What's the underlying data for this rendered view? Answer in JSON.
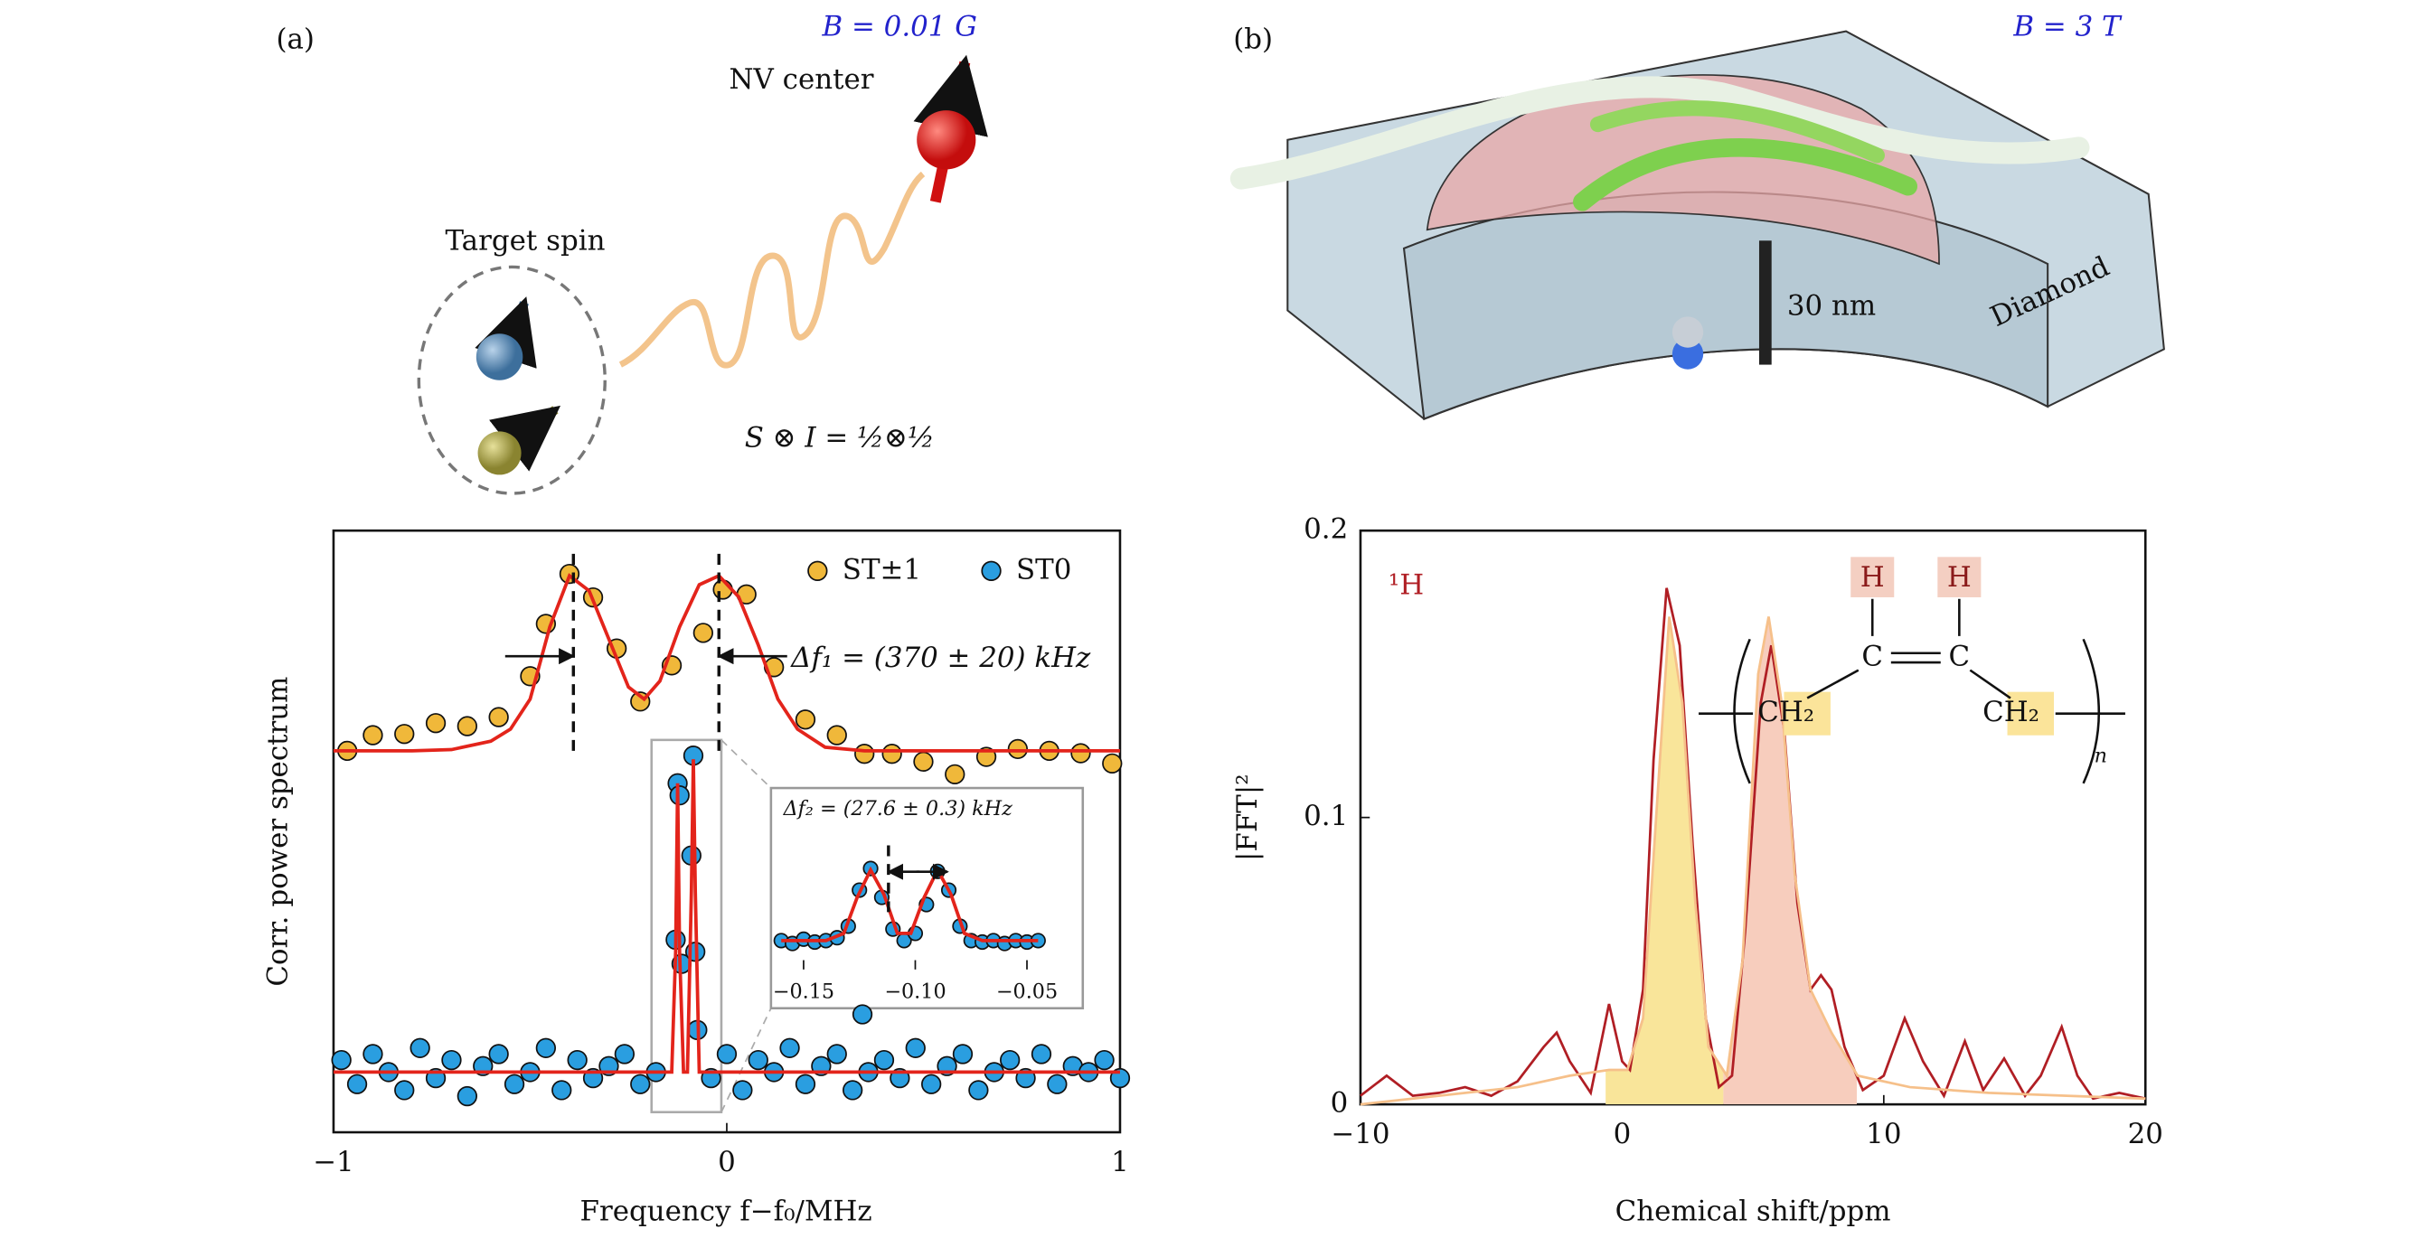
{
  "panel_labels": [
    "(a)",
    "(b)"
  ],
  "illustration_a": {
    "field": "B = 0.01 G",
    "nv": "NV center",
    "target": "Target spin",
    "formula": "S ⊗ I = ½⊗½"
  },
  "illustration_b": {
    "field": "B = 3 T",
    "scale": "30 nm",
    "material": "Diamond"
  },
  "chart_data": [
    {
      "type": "scatter",
      "ylabel": "Corr. power spectrum",
      "xlabel": "Frequency f−f₀/MHz",
      "xlim": [
        -1,
        1
      ],
      "ylim": [
        0,
        1
      ],
      "xticks": [
        {
          "value": -1,
          "label": "−1"
        },
        0,
        1
      ],
      "annotation": "Δf₁ = (370 ± 20) kHz",
      "dashed_x": [
        -0.39,
        -0.02
      ],
      "series": [
        {
          "name": "ST±1",
          "style": "points",
          "color": "#f0b83a",
          "x": [
            -0.965,
            -0.9,
            -0.82,
            -0.74,
            -0.66,
            -0.58,
            -0.5,
            -0.46,
            -0.4,
            -0.34,
            -0.28,
            -0.22,
            -0.14,
            -0.06,
            -0.01,
            0.05,
            0.12,
            0.2,
            0.28,
            0.35,
            0.42,
            0.5,
            0.58,
            0.66,
            0.74,
            0.82,
            0.9,
            0.98
          ],
          "values": [
            0.634,
            0.66,
            0.662,
            0.68,
            0.675,
            0.69,
            0.758,
            0.845,
            0.928,
            0.889,
            0.804,
            0.716,
            0.776,
            0.83,
            0.902,
            0.894,
            0.773,
            0.686,
            0.66,
            0.629,
            0.629,
            0.616,
            0.595,
            0.624,
            0.637,
            0.634,
            0.63,
            0.613
          ]
        },
        {
          "name": "ST0",
          "style": "points",
          "color": "#2a9ee0",
          "x": [
            -0.98,
            -0.94,
            -0.9,
            -0.86,
            -0.82,
            -0.78,
            -0.74,
            -0.7,
            -0.66,
            -0.62,
            -0.58,
            -0.54,
            -0.5,
            -0.46,
            -0.42,
            -0.38,
            -0.34,
            -0.3,
            -0.26,
            -0.22,
            -0.18,
            -0.13,
            -0.125,
            -0.12,
            -0.115,
            -0.09,
            -0.085,
            -0.08,
            -0.075,
            -0.04,
            0,
            0.04,
            0.08,
            0.12,
            0.16,
            0.2,
            0.24,
            0.28,
            0.32,
            0.345,
            0.36,
            0.4,
            0.44,
            0.48,
            0.52,
            0.56,
            0.6,
            0.64,
            0.68,
            0.72,
            0.76,
            0.8,
            0.84,
            0.88,
            0.92,
            0.96,
            1
          ],
          "values": [
            0.12,
            0.08,
            0.13,
            0.1,
            0.07,
            0.14,
            0.09,
            0.12,
            0.06,
            0.11,
            0.13,
            0.08,
            0.1,
            0.14,
            0.07,
            0.12,
            0.09,
            0.11,
            0.13,
            0.08,
            0.1,
            0.32,
            0.58,
            0.56,
            0.28,
            0.46,
            0.626,
            0.3,
            0.17,
            0.09,
            0.13,
            0.07,
            0.12,
            0.1,
            0.14,
            0.08,
            0.11,
            0.13,
            0.07,
            0.196,
            0.1,
            0.12,
            0.09,
            0.14,
            0.08,
            0.11,
            0.13,
            0.07,
            0.1,
            0.12,
            0.09,
            0.13,
            0.08,
            0.11,
            0.1,
            0.12,
            0.09
          ]
        },
        {
          "style": "line",
          "color": "#e3241b",
          "x": [
            -1,
            -0.8,
            -0.7,
            -0.6,
            -0.55,
            -0.5,
            -0.45,
            -0.4,
            -0.35,
            -0.3,
            -0.25,
            -0.21,
            -0.17,
            -0.12,
            -0.07,
            -0.02,
            0.03,
            0.08,
            0.13,
            0.18,
            0.25,
            0.35,
            0.5,
            1
          ],
          "values": [
            0.634,
            0.634,
            0.636,
            0.65,
            0.67,
            0.72,
            0.84,
            0.925,
            0.9,
            0.82,
            0.74,
            0.72,
            0.75,
            0.84,
            0.91,
            0.925,
            0.89,
            0.81,
            0.72,
            0.67,
            0.64,
            0.634,
            0.634,
            0.634
          ]
        },
        {
          "style": "line",
          "color": "#e3241b",
          "x": [
            -1,
            -0.14,
            -0.13,
            -0.125,
            -0.12,
            -0.11,
            -0.1,
            -0.09,
            -0.085,
            -0.08,
            -0.07,
            1
          ],
          "values": [
            0.1,
            0.1,
            0.3,
            0.58,
            0.3,
            0.1,
            0.1,
            0.4,
            0.62,
            0.4,
            0.1,
            0.1
          ]
        }
      ],
      "inset": {
        "xlim": [
          -0.1646,
          -0.025
        ],
        "ylim": [
          0,
          1
        ],
        "xticks": [
          {
            "value": -0.15,
            "label": "−0.15"
          },
          {
            "value": -0.1,
            "label": "−0.10"
          },
          {
            "value": -0.05,
            "label": "−0.05"
          }
        ],
        "annotation": "Δf₂ = (27.6 ± 0.3) kHz",
        "dashed_x": [
          -0.112
        ],
        "series": [
          {
            "style": "points",
            "color": "#2a9ee0",
            "x": [
              -0.16,
              -0.155,
              -0.15,
              -0.145,
              -0.14,
              -0.135,
              -0.13,
              -0.125,
              -0.12,
              -0.115,
              -0.11,
              -0.105,
              -0.1,
              -0.095,
              -0.09,
              -0.085,
              -0.08,
              -0.075,
              -0.07,
              -0.065,
              -0.06,
              -0.055,
              -0.05,
              -0.045
            ],
            "values": [
              0.2,
              0.18,
              0.21,
              0.19,
              0.2,
              0.22,
              0.3,
              0.55,
              0.7,
              0.5,
              0.28,
              0.2,
              0.25,
              0.45,
              0.68,
              0.55,
              0.3,
              0.2,
              0.19,
              0.2,
              0.18,
              0.2,
              0.19,
              0.2
            ]
          },
          {
            "style": "line",
            "color": "#e3241b",
            "x": [
              -0.16,
              -0.14,
              -0.132,
              -0.126,
              -0.12,
              -0.114,
              -0.108,
              -0.102,
              -0.096,
              -0.09,
              -0.084,
              -0.078,
              -0.07,
              -0.045
            ],
            "values": [
              0.2,
              0.2,
              0.25,
              0.5,
              0.69,
              0.52,
              0.25,
              0.25,
              0.5,
              0.69,
              0.52,
              0.25,
              0.2,
              0.2
            ]
          }
        ]
      }
    },
    {
      "type": "line",
      "ylabel": "|FFT|²",
      "xlabel": "Chemical shift/ppm",
      "nucleus": "¹H",
      "xlim": [
        -10,
        20
      ],
      "ylim": [
        0,
        0.2
      ],
      "xticks": [
        {
          "value": -10,
          "label": "−10"
        },
        0,
        10,
        20
      ],
      "yticks": [
        0,
        0.1,
        0.2
      ],
      "molecule": {
        "h": [
          "H",
          "H"
        ],
        "c": [
          "C",
          "C"
        ],
        "ch2": [
          "CH₂",
          "CH₂"
        ],
        "repeat": "n"
      },
      "fills": [
        {
          "x": [
            -0.63,
            3.87
          ],
          "color": "#f9e59a"
        },
        {
          "x": [
            3.87,
            8.97
          ],
          "color": "#f7cdbd"
        }
      ],
      "fill_series": 1,
      "series": [
        {
          "color": "#b01e24",
          "x": [
            -10,
            -9,
            -8,
            -7,
            -6,
            -5,
            -4,
            -3,
            -2.5,
            -2,
            -1.2,
            -0.5,
            0,
            0.3,
            0.8,
            1.2,
            1.7,
            2.2,
            2.7,
            3.2,
            3.7,
            4.2,
            4.7,
            5.3,
            5.7,
            6.2,
            6.7,
            7.2,
            7.6,
            8,
            8.5,
            9.2,
            10,
            10.8,
            11.5,
            12.3,
            13.1,
            13.8,
            14.6,
            15.4,
            16,
            16.8,
            17.4,
            18,
            19,
            20
          ],
          "values": [
            0.003,
            0.01,
            0.003,
            0.004,
            0.006,
            0.003,
            0.008,
            0.02,
            0.025,
            0.015,
            0.004,
            0.035,
            0.015,
            0.012,
            0.04,
            0.12,
            0.18,
            0.16,
            0.09,
            0.03,
            0.006,
            0.01,
            0.06,
            0.14,
            0.16,
            0.13,
            0.07,
            0.04,
            0.045,
            0.04,
            0.02,
            0.005,
            0.01,
            0.03,
            0.015,
            0.003,
            0.022,
            0.005,
            0.016,
            0.003,
            0.01,
            0.027,
            0.01,
            0.002,
            0.004,
            0.002
          ]
        },
        {
          "color": "#f6c08a",
          "x": [
            -10,
            -8,
            -4,
            -2,
            -0.5,
            0.2,
            0.8,
            1.3,
            1.8,
            2.3,
            2.8,
            3.3,
            4,
            4.6,
            5.2,
            5.6,
            6.1,
            6.6,
            7.2,
            8,
            9,
            11,
            14,
            17,
            20
          ],
          "values": [
            0,
            0.002,
            0.006,
            0.01,
            0.012,
            0.012,
            0.03,
            0.1,
            0.17,
            0.14,
            0.07,
            0.02,
            0.01,
            0.05,
            0.15,
            0.17,
            0.14,
            0.08,
            0.04,
            0.025,
            0.01,
            0.006,
            0.004,
            0.003,
            0.002
          ]
        }
      ]
    }
  ]
}
